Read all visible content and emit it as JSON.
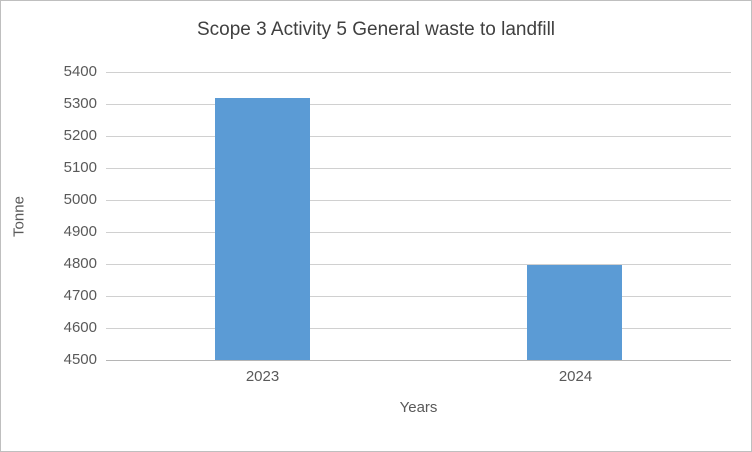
{
  "chart_data": {
    "type": "bar",
    "title": "Scope 3 Activity 5 General waste to landfill",
    "categories": [
      "2023",
      "2024"
    ],
    "values": [
      5320,
      4797
    ],
    "xlabel": "Years",
    "ylabel": "Tonne",
    "ylim": [
      4500,
      5400
    ],
    "ytick_step": 100,
    "ytick_labels": [
      "5400",
      "5300",
      "5200",
      "5100",
      "5000",
      "4900",
      "4800",
      "4700",
      "4600",
      "4500"
    ],
    "bar_color": "#5b9bd5",
    "gridline_color": "#d0d0d0",
    "text_color": "#595959",
    "grid": true,
    "legend_position": "none"
  }
}
